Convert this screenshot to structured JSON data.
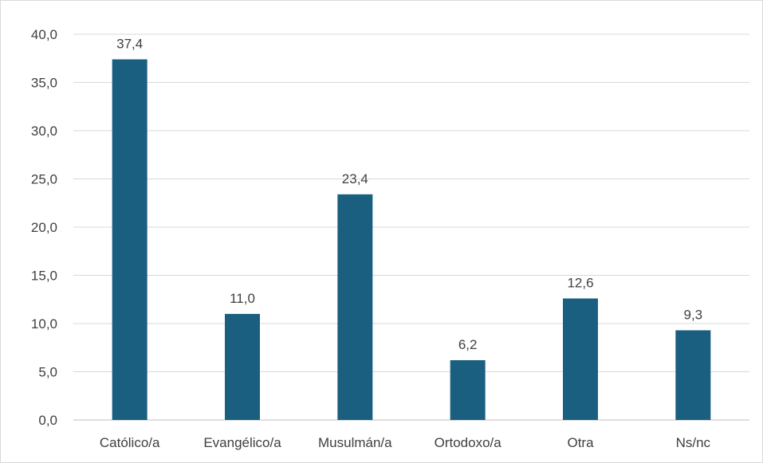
{
  "chart_data": {
    "type": "bar",
    "categories": [
      "Católico/a",
      "Evangélico/a",
      "Musulmán/a",
      "Ortodoxo/a",
      "Otra",
      "Ns/nc"
    ],
    "values": [
      37.4,
      11.0,
      23.4,
      6.2,
      12.6,
      9.3
    ],
    "value_labels": [
      "37,4",
      "11,0",
      "23,4",
      "6,2",
      "12,6",
      "9,3"
    ],
    "ylim": [
      0,
      40
    ],
    "yticks": [
      0,
      5,
      10,
      15,
      20,
      25,
      30,
      35,
      40
    ],
    "ytick_labels": [
      "0,0",
      "5,0",
      "10,0",
      "15,0",
      "20,0",
      "25,0",
      "30,0",
      "35,0",
      "40,0"
    ],
    "title": "",
    "xlabel": "",
    "ylabel": "",
    "grid": true,
    "legend": "none",
    "bar_color": "#1a5f80"
  }
}
